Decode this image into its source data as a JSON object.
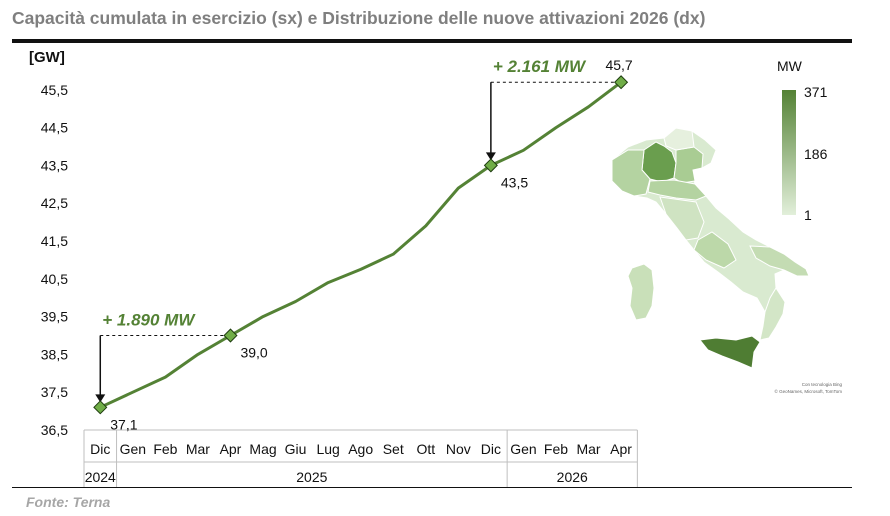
{
  "title": "Capacità cumulata in esercizio (sx) e Distribuzione delle nuove attivazioni 2026 (dx)",
  "source": "Fonte: Terna",
  "colors": {
    "line": "#548235",
    "marker": "#70ad47",
    "annotation": "#548235",
    "title": "#7f7f7f",
    "source": "#a6a6a6",
    "map_high": "#548235",
    "map_low": "#e2efda"
  },
  "chart_data": {
    "type": "line",
    "ylabel": "[GW]",
    "ylim": [
      36.5,
      46.0
    ],
    "yticks": [
      "36,5",
      "37,5",
      "38,5",
      "39,5",
      "40,5",
      "41,5",
      "42,5",
      "43,5",
      "44,5",
      "45,5"
    ],
    "x": [
      "Dic",
      "Gen",
      "Feb",
      "Mar",
      "Apr",
      "Mag",
      "Giu",
      "Lug",
      "Ago",
      "Set",
      "Ott",
      "Nov",
      "Dic",
      "Gen",
      "Feb",
      "Mar",
      "Apr"
    ],
    "years": [
      {
        "label": "2024",
        "span": 1
      },
      {
        "label": "2025",
        "span": 12
      },
      {
        "label": "2026",
        "span": 4
      }
    ],
    "series": [
      {
        "values": [
          37.1,
          37.5,
          37.9,
          38.5,
          39.0,
          39.5,
          39.9,
          40.4,
          40.75,
          41.15,
          41.9,
          42.9,
          43.5,
          43.9,
          44.5,
          45.05,
          45.7
        ]
      }
    ],
    "markers": [
      {
        "index": 0,
        "label": "37,1"
      },
      {
        "index": 4,
        "label": "39,0"
      },
      {
        "index": 12,
        "label": "43,5"
      },
      {
        "index": 16,
        "label": "45,7"
      }
    ],
    "annotations": [
      {
        "text": "+ 1.890 MW",
        "from_index": 0,
        "to_index": 4
      },
      {
        "text": "+ 2.161 MW",
        "from_index": 12,
        "to_index": 16
      }
    ]
  },
  "map": {
    "legend_title": "MW",
    "legend_values": [
      "371",
      "186",
      "1"
    ],
    "credit_line1": "Con tecnologia Bing",
    "credit_line2": "© GeoNames, Microsoft, TomTom"
  }
}
